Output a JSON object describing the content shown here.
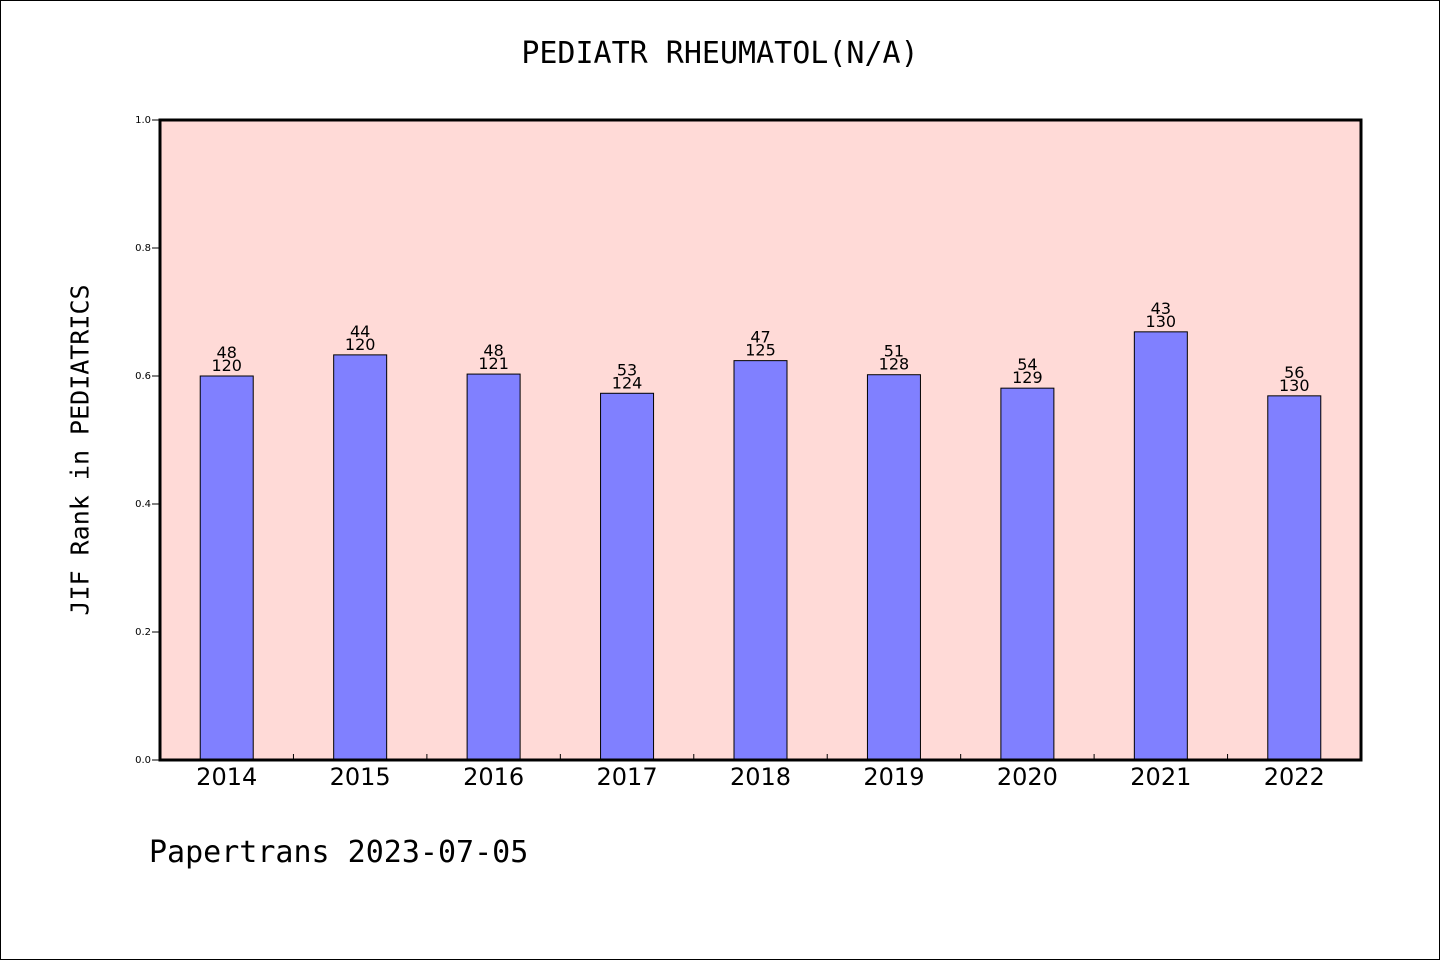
{
  "chart_data": {
    "type": "bar",
    "title": "PEDIATR RHEUMATOL(N/A)",
    "ylabel": "JIF Rank in PEDIATRICS",
    "xlabel": "",
    "ylim": [
      0,
      1.0
    ],
    "yticks": [
      "0.0",
      "0.2",
      "0.4",
      "0.6",
      "0.8",
      "1.0"
    ],
    "grid": false,
    "categories": [
      "2014",
      "2015",
      "2016",
      "2017",
      "2018",
      "2019",
      "2020",
      "2021",
      "2022"
    ],
    "series": [
      {
        "values": [
          0.6,
          0.633,
          0.603,
          0.573,
          0.624,
          0.602,
          0.581,
          0.669,
          0.569
        ],
        "labels": [
          [
            "48",
            "120"
          ],
          [
            "44",
            "120"
          ],
          [
            "48",
            "121"
          ],
          [
            "53",
            "124"
          ],
          [
            "47",
            "125"
          ],
          [
            "51",
            "128"
          ],
          [
            "54",
            "129"
          ],
          [
            "43",
            "130"
          ],
          [
            "56",
            "130"
          ]
        ]
      }
    ],
    "colors": {
      "plot_background": "#ffdad7",
      "bar_fill": "#8080ff",
      "bar_stroke": "#000000"
    }
  },
  "watermark": "Papertrans 2023-07-05"
}
